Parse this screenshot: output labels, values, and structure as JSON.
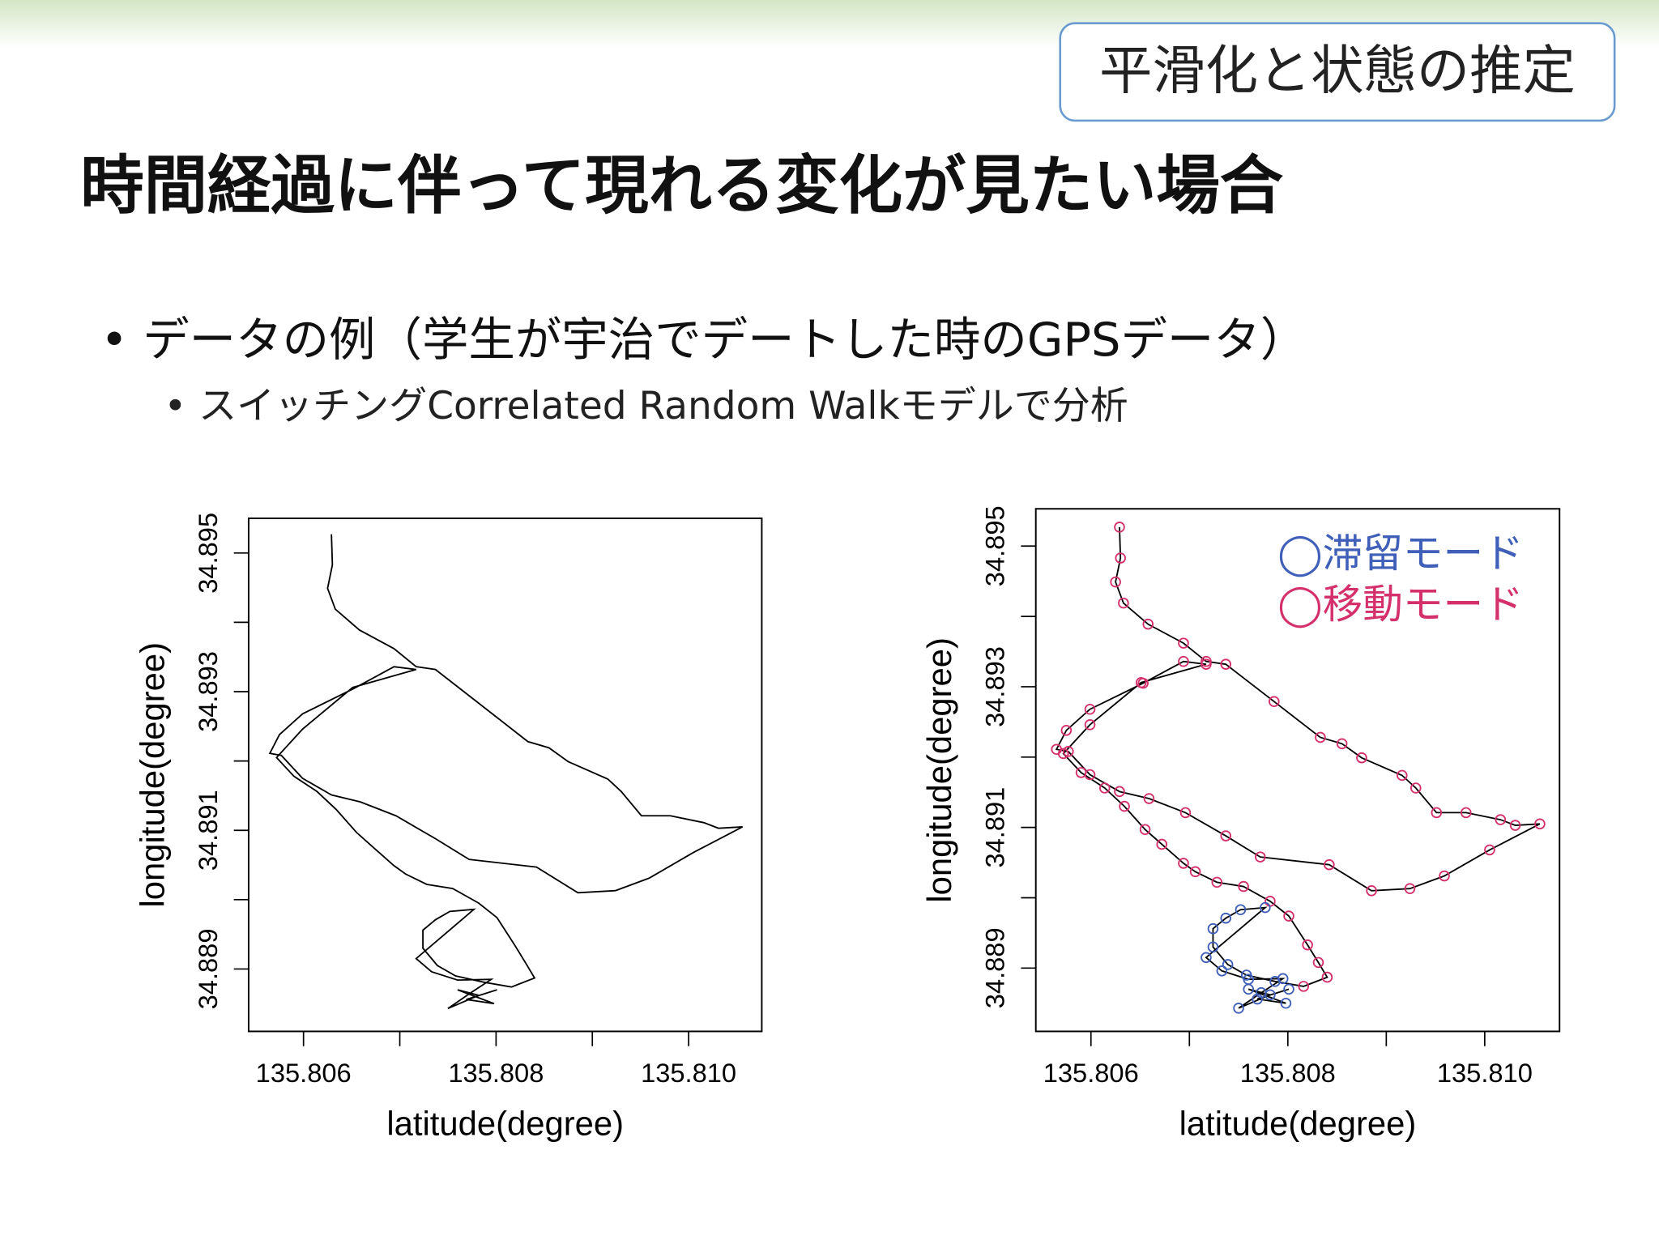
{
  "header": {
    "badge": "平滑化と状態の推定",
    "title": "時間経過に伴って現れる変化が見たい場合"
  },
  "bullets": [
    "• データの例（学生が宇治でデートした時のGPSデータ）",
    "• スイッチングCorrelated Random Walkモデルで分析"
  ],
  "chart_data": [
    {
      "type": "line",
      "xlabel": "latitude(degree)",
      "ylabel": "longitude(degree)",
      "color": "#000000",
      "x": [
        135.80629,
        135.8063,
        135.80625,
        135.80633,
        135.80658,
        135.80694,
        135.80717,
        135.80737,
        135.80786,
        135.80833,
        135.80855,
        135.80875,
        135.80916,
        135.8093,
        135.80951,
        135.80981,
        135.81016,
        135.81031,
        135.81056,
        135.81005,
        135.80959,
        135.80924,
        135.80885,
        135.80842,
        135.80772,
        135.80737,
        135.80696,
        135.80659,
        135.80629,
        135.80599,
        135.80577,
        135.80565,
        135.80575,
        135.80599,
        135.80653,
        135.80694,
        135.80717,
        135.80651,
        135.80599,
        135.80572,
        135.8059,
        135.80614,
        135.80634,
        135.80655,
        135.80672,
        135.80694,
        135.80706,
        135.80728,
        135.80755,
        135.80782,
        135.80801,
        135.8082,
        135.80831,
        135.8084,
        135.80816,
        135.80787,
        135.80758,
        135.80739,
        135.80724,
        135.80724,
        135.80737,
        135.80752,
        135.80777,
        135.80717,
        135.80733,
        135.8076,
        135.80795,
        135.80773,
        135.8075,
        135.80782,
        135.8076,
        135.80798,
        135.80769,
        135.80801
      ],
      "values": [
        34.89527,
        34.89483,
        34.89449,
        34.89419,
        34.89389,
        34.89362,
        34.89336,
        34.89332,
        34.89279,
        34.89228,
        34.89219,
        34.89199,
        34.89174,
        34.89156,
        34.89121,
        34.89121,
        34.89111,
        34.89103,
        34.89105,
        34.89068,
        34.89031,
        34.89013,
        34.8901,
        34.89047,
        34.89058,
        34.89088,
        34.89121,
        34.89141,
        34.89151,
        34.89175,
        34.89208,
        34.89211,
        34.89238,
        34.89268,
        34.89305,
        34.89336,
        34.89332,
        34.89306,
        34.89246,
        34.89205,
        34.89178,
        34.89156,
        34.8913,
        34.89097,
        34.89076,
        34.89049,
        34.89037,
        34.89022,
        34.89016,
        34.88995,
        34.88974,
        34.88933,
        34.88908,
        34.88887,
        34.88874,
        34.88881,
        34.8889,
        34.88905,
        34.8893,
        34.88956,
        34.88971,
        34.88983,
        34.88986,
        34.88915,
        34.88896,
        34.88884,
        34.88885,
        34.88865,
        34.88843,
        34.88862,
        34.8887,
        34.8885,
        34.88856,
        34.8887
      ],
      "xlim": [
        135.80543,
        135.81076
      ],
      "ylim": [
        34.8881,
        34.8955
      ],
      "xticks": [
        135.806,
        135.808,
        {
          "value": 135.81,
          "label": "135.810"
        }
      ],
      "xminorticks": [
        135.807,
        135.809
      ],
      "yticks": [
        34.889,
        34.891,
        34.893,
        34.895
      ],
      "yminorticks": [
        34.89,
        34.892,
        34.894
      ]
    },
    {
      "type": "scatter",
      "xlabel": "latitude(degree)",
      "ylabel": "longitude(degree)",
      "line_color": "#000000",
      "legend": "upper right",
      "series": [
        {
          "name": "◯滞留モード",
          "color": "#3f5fb8"
        },
        {
          "name": "◯移動モード",
          "color": "#d4306c"
        }
      ],
      "x": [
        135.80629,
        135.8063,
        135.80625,
        135.80633,
        135.80658,
        135.80694,
        135.80717,
        135.80737,
        135.80786,
        135.80833,
        135.80855,
        135.80875,
        135.80916,
        135.8093,
        135.80951,
        135.80981,
        135.81016,
        135.81031,
        135.81056,
        135.81005,
        135.80959,
        135.80924,
        135.80885,
        135.80842,
        135.80772,
        135.80737,
        135.80696,
        135.80659,
        135.80629,
        135.80599,
        135.80577,
        135.80565,
        135.80575,
        135.80599,
        135.80653,
        135.80694,
        135.80717,
        135.80651,
        135.80599,
        135.80572,
        135.8059,
        135.80614,
        135.80634,
        135.80655,
        135.80672,
        135.80694,
        135.80706,
        135.80728,
        135.80755,
        135.80782,
        135.80801,
        135.8082,
        135.80831,
        135.8084,
        135.80816,
        135.80787,
        135.80758,
        135.80739,
        135.80724,
        135.80724,
        135.80737,
        135.80752,
        135.80777,
        135.80717,
        135.80733,
        135.8076,
        135.80795,
        135.80773,
        135.8075,
        135.80782,
        135.8076,
        135.80798,
        135.80769,
        135.80801
      ],
      "values": [
        34.89527,
        34.89483,
        34.89449,
        34.89419,
        34.89389,
        34.89362,
        34.89336,
        34.89332,
        34.89279,
        34.89228,
        34.89219,
        34.89199,
        34.89174,
        34.89156,
        34.89121,
        34.89121,
        34.89111,
        34.89103,
        34.89105,
        34.89068,
        34.89031,
        34.89013,
        34.8901,
        34.89047,
        34.89058,
        34.89088,
        34.89121,
        34.89141,
        34.89151,
        34.89175,
        34.89208,
        34.89211,
        34.89238,
        34.89268,
        34.89305,
        34.89336,
        34.89332,
        34.89306,
        34.89246,
        34.89205,
        34.89178,
        34.89156,
        34.8913,
        34.89097,
        34.89076,
        34.89049,
        34.89037,
        34.89022,
        34.89016,
        34.88995,
        34.88974,
        34.88933,
        34.88908,
        34.88887,
        34.88874,
        34.88881,
        34.8889,
        34.88905,
        34.8893,
        34.88956,
        34.88971,
        34.88983,
        34.88986,
        34.88915,
        34.88896,
        34.88884,
        34.88885,
        34.88865,
        34.88843,
        34.88862,
        34.8887,
        34.8885,
        34.88856,
        34.8887
      ],
      "modes": [
        1,
        1,
        1,
        1,
        1,
        1,
        1,
        1,
        1,
        1,
        1,
        1,
        1,
        1,
        1,
        1,
        1,
        1,
        1,
        1,
        1,
        1,
        1,
        1,
        1,
        1,
        1,
        1,
        1,
        1,
        1,
        1,
        1,
        1,
        1,
        1,
        1,
        1,
        1,
        1,
        1,
        1,
        1,
        1,
        1,
        1,
        1,
        1,
        1,
        1,
        1,
        1,
        1,
        1,
        1,
        0,
        0,
        0,
        0,
        0,
        0,
        0,
        0,
        0,
        0,
        0,
        0,
        0,
        0,
        0,
        0,
        0,
        0,
        0
      ],
      "xlim": [
        135.80544,
        135.81076
      ],
      "ylim": [
        34.8881,
        34.89553
      ],
      "xticks": [
        135.806,
        135.808,
        {
          "value": 135.81,
          "label": "135.810"
        }
      ],
      "xminorticks": [
        135.807,
        135.809
      ],
      "yticks": [
        34.889,
        34.891,
        34.893,
        34.895
      ],
      "yminorticks": [
        34.89,
        34.892,
        34.894
      ]
    }
  ]
}
